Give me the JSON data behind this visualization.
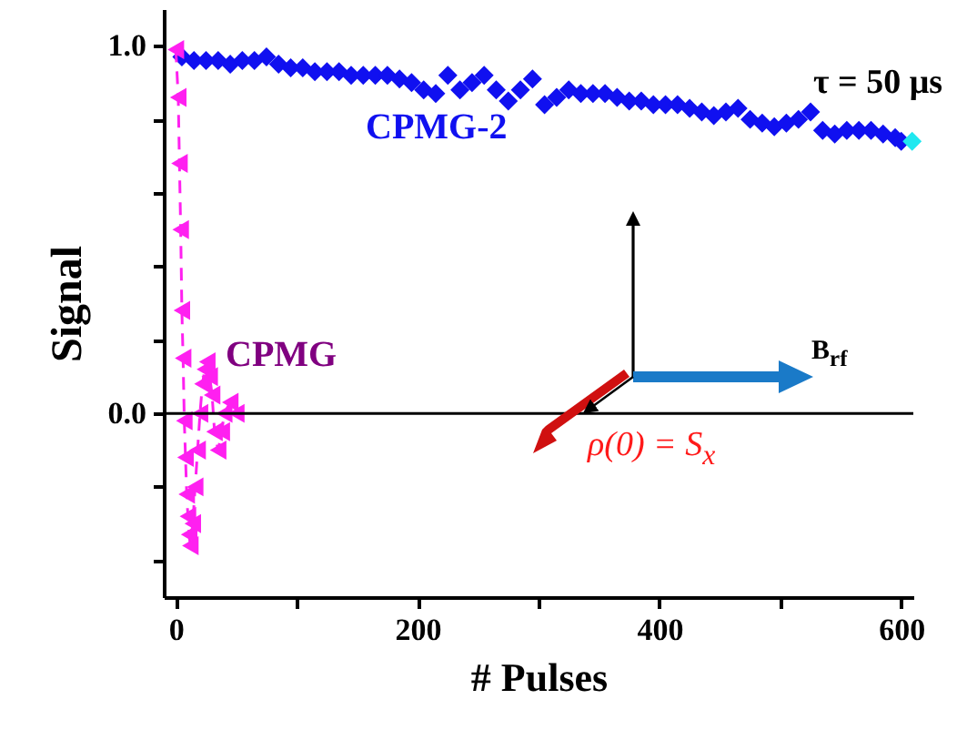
{
  "chart_data": {
    "type": "scatter",
    "xlabel": "# Pulses",
    "ylabel": "Signal",
    "xlim": [
      -10,
      610
    ],
    "ylim": [
      -0.5,
      1.1
    ],
    "xticks": [
      0,
      {
        "value": 100,
        "label": null
      },
      200,
      {
        "value": 300,
        "label": null
      },
      400,
      {
        "value": 500,
        "label": null
      },
      600
    ],
    "yticks": [
      {
        "value": -0.4,
        "label": null
      },
      {
        "value": -0.2,
        "label": null
      },
      {
        "value": 0,
        "label": "0.0"
      },
      {
        "value": 0.2,
        "label": null
      },
      {
        "value": 0.4,
        "label": null
      },
      {
        "value": 0.6,
        "label": null
      },
      {
        "value": 0.8,
        "label": null
      },
      {
        "value": 1,
        "label": "1.0"
      }
    ],
    "series": [
      {
        "name": "CPMG-2",
        "marker": "diamond",
        "color": "#1010f0",
        "x": [
          5,
          15,
          25,
          35,
          45,
          55,
          65,
          75,
          85,
          95,
          105,
          115,
          125,
          135,
          145,
          155,
          165,
          175,
          185,
          195,
          205,
          215,
          225,
          235,
          245,
          255,
          265,
          275,
          285,
          295,
          305,
          315,
          325,
          335,
          345,
          355,
          365,
          375,
          385,
          395,
          405,
          415,
          425,
          435,
          445,
          455,
          465,
          475,
          485,
          495,
          505,
          515,
          525,
          535,
          545,
          555,
          565,
          575,
          585,
          595,
          600
        ],
        "values": [
          0.97,
          0.96,
          0.96,
          0.96,
          0.95,
          0.96,
          0.96,
          0.97,
          0.95,
          0.94,
          0.94,
          0.93,
          0.93,
          0.93,
          0.92,
          0.92,
          0.92,
          0.92,
          0.91,
          0.9,
          0.88,
          0.87,
          0.92,
          0.88,
          0.9,
          0.92,
          0.88,
          0.85,
          0.88,
          0.91,
          0.84,
          0.86,
          0.88,
          0.87,
          0.87,
          0.87,
          0.86,
          0.85,
          0.85,
          0.84,
          0.84,
          0.84,
          0.83,
          0.82,
          0.81,
          0.82,
          0.83,
          0.8,
          0.79,
          0.78,
          0.79,
          0.8,
          0.82,
          0.77,
          0.76,
          0.77,
          0.77,
          0.77,
          0.76,
          0.75,
          0.74
        ]
      },
      {
        "marker": "diamond",
        "color": "#20e8f0",
        "x": [
          609
        ],
        "values": [
          0.74
        ]
      },
      {
        "name": "CPMG",
        "type": "line",
        "marker": "triangle",
        "line_style": "dashed",
        "color": "#ff20f0",
        "x": [
          0,
          2,
          3,
          4,
          5,
          6,
          7,
          8,
          9,
          10,
          11,
          12,
          14,
          16,
          18,
          20,
          22,
          24,
          26,
          28,
          30,
          32,
          35,
          38,
          40,
          45,
          50
        ],
        "values": [
          0.99,
          0.86,
          0.68,
          0.5,
          0.28,
          0.15,
          -0.02,
          -0.12,
          -0.22,
          -0.28,
          -0.33,
          -0.36,
          -0.3,
          -0.2,
          -0.1,
          0,
          0.08,
          0.12,
          0.14,
          0.1,
          0.05,
          -0.05,
          -0.1,
          -0.05,
          0,
          0.03,
          0
        ]
      }
    ],
    "ref_lines": [
      {
        "axis": "y",
        "value": 0,
        "color": "#000000"
      }
    ],
    "annotations": [
      "τ = 50 μs",
      "B$_{rf}$",
      "ρ(0) = S$_{x}$"
    ]
  }
}
